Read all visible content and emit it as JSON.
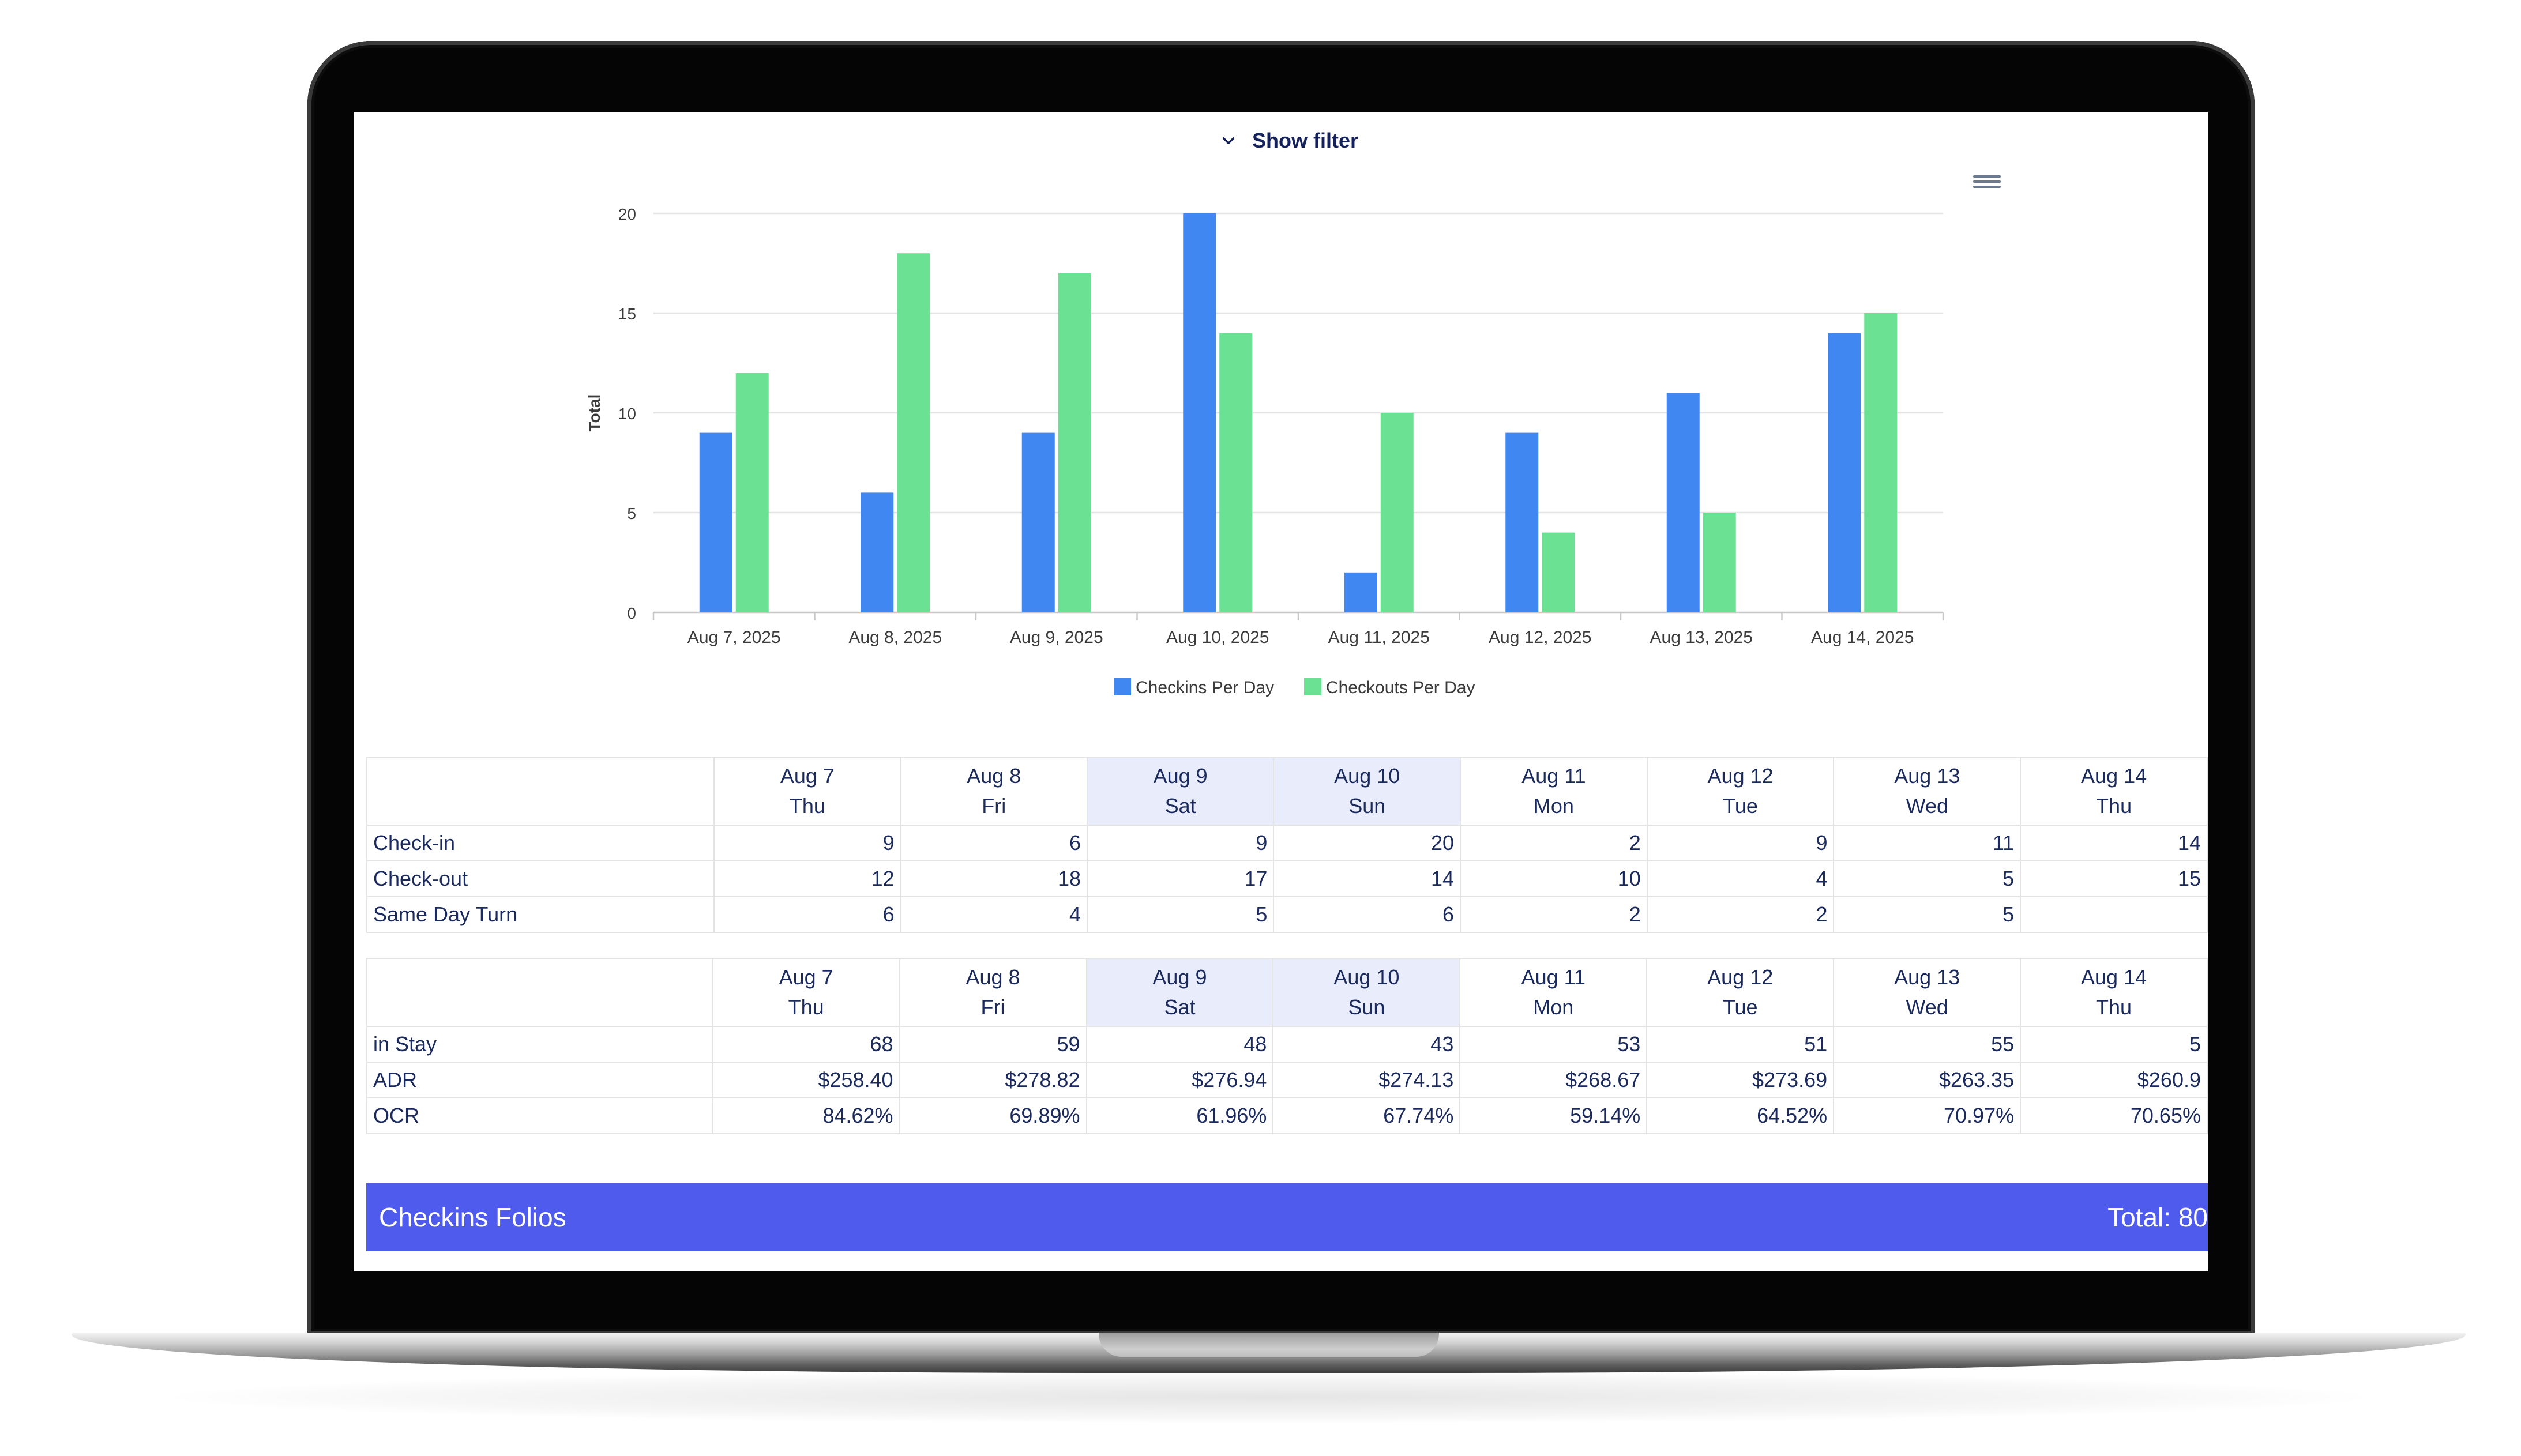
{
  "filter": {
    "label": "Show filter"
  },
  "menu_icon": "hamburger-menu-icon",
  "colors": {
    "checkins": "#4187f2",
    "checkouts": "#6be194",
    "folio_bar": "#4f5bed",
    "weekend_header": "#e9ecfb",
    "text": "#1b2a5c"
  },
  "chart_data": {
    "type": "bar",
    "categories": [
      "Aug 7, 2025",
      "Aug 8, 2025",
      "Aug 9, 2025",
      "Aug 10, 2025",
      "Aug 11, 2025",
      "Aug 12, 2025",
      "Aug 13, 2025",
      "Aug 14, 2025"
    ],
    "series": [
      {
        "name": "Checkins Per Day",
        "color": "#4187f2",
        "values": [
          9,
          6,
          9,
          20,
          2,
          9,
          11,
          14
        ]
      },
      {
        "name": "Checkouts Per Day",
        "color": "#6be194",
        "values": [
          12,
          18,
          17,
          14,
          10,
          4,
          5,
          15
        ]
      }
    ],
    "title": "",
    "xlabel": "",
    "ylabel": "Total",
    "ylim": [
      0,
      20
    ],
    "yticks": [
      0,
      5,
      10,
      15,
      20
    ],
    "grid": true,
    "legend": "bottom-center"
  },
  "table_columns": [
    {
      "day": "Aug 7",
      "dow": "Thu",
      "weekend": false
    },
    {
      "day": "Aug 8",
      "dow": "Fri",
      "weekend": false
    },
    {
      "day": "Aug 9",
      "dow": "Sat",
      "weekend": true
    },
    {
      "day": "Aug 10",
      "dow": "Sun",
      "weekend": true
    },
    {
      "day": "Aug 11",
      "dow": "Mon",
      "weekend": false
    },
    {
      "day": "Aug 12",
      "dow": "Tue",
      "weekend": false
    },
    {
      "day": "Aug 13",
      "dow": "Wed",
      "weekend": false
    },
    {
      "day": "Aug 14",
      "dow": "Thu",
      "weekend": false
    }
  ],
  "movement_table": {
    "rows": [
      {
        "label": "Check-in",
        "values": [
          "9",
          "6",
          "9",
          "20",
          "2",
          "9",
          "11",
          "14"
        ]
      },
      {
        "label": "Check-out",
        "values": [
          "12",
          "18",
          "17",
          "14",
          "10",
          "4",
          "5",
          "15"
        ]
      },
      {
        "label": "Same Day Turn",
        "values": [
          "6",
          "4",
          "5",
          "6",
          "2",
          "2",
          "5",
          ""
        ]
      }
    ]
  },
  "stats_table": {
    "rows": [
      {
        "label": "in Stay",
        "values": [
          "68",
          "59",
          "48",
          "43",
          "53",
          "51",
          "55",
          "5"
        ]
      },
      {
        "label": "ADR",
        "values": [
          "$258.40",
          "$278.82",
          "$276.94",
          "$274.13",
          "$268.67",
          "$273.69",
          "$263.35",
          "$260.9"
        ]
      },
      {
        "label": "OCR",
        "values": [
          "84.62%",
          "69.89%",
          "61.96%",
          "67.74%",
          "59.14%",
          "64.52%",
          "70.97%",
          "70.65%"
        ]
      }
    ]
  },
  "folio": {
    "title": "Checkins Folios",
    "total": "Total: 80"
  }
}
